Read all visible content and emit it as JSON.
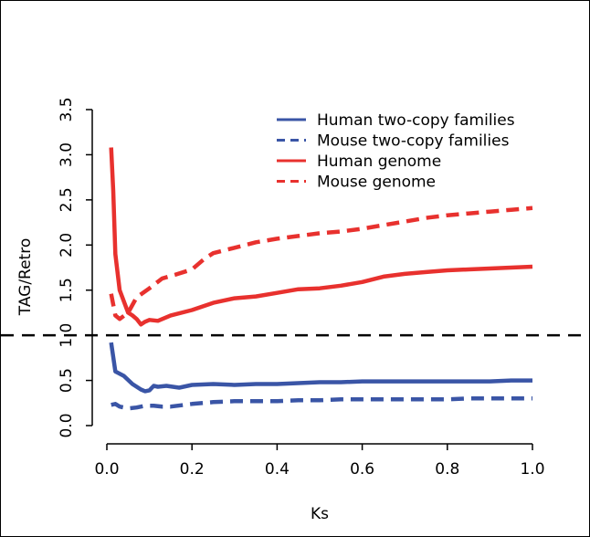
{
  "chart_data": {
    "type": "line",
    "title": "",
    "xlabel": "Ks",
    "ylabel": "TAG/Retro",
    "xlim": [
      0.0,
      1.0
    ],
    "ylim": [
      0.0,
      3.5
    ],
    "x_ticks": [
      "0.0",
      "0.2",
      "0.4",
      "0.6",
      "0.8",
      "1.0"
    ],
    "y_ticks": [
      "0.0",
      "0.5",
      "1.0",
      "1.5",
      "2.0",
      "2.5",
      "3.0",
      "3.5"
    ],
    "grid": false,
    "legend_position": "top-right",
    "reference_line": {
      "y": 1.0,
      "style": "dashed",
      "color": "#000000"
    },
    "series": [
      {
        "name": "Human two-copy families",
        "color": "#3a55a6",
        "dash": "solid",
        "x": [
          0.01,
          0.02,
          0.04,
          0.06,
          0.08,
          0.09,
          0.1,
          0.11,
          0.12,
          0.14,
          0.17,
          0.2,
          0.25,
          0.3,
          0.35,
          0.4,
          0.45,
          0.5,
          0.55,
          0.6,
          0.65,
          0.7,
          0.75,
          0.8,
          0.85,
          0.9,
          0.95,
          1.0
        ],
        "y": [
          0.92,
          0.6,
          0.55,
          0.46,
          0.4,
          0.38,
          0.39,
          0.44,
          0.43,
          0.44,
          0.42,
          0.45,
          0.46,
          0.45,
          0.46,
          0.46,
          0.47,
          0.48,
          0.48,
          0.49,
          0.49,
          0.49,
          0.49,
          0.49,
          0.49,
          0.49,
          0.5,
          0.5
        ]
      },
      {
        "name": "Mouse two-copy families",
        "color": "#3a55a6",
        "dash": "dashed",
        "x": [
          0.01,
          0.02,
          0.03,
          0.05,
          0.07,
          0.09,
          0.11,
          0.13,
          0.15,
          0.2,
          0.25,
          0.3,
          0.35,
          0.4,
          0.45,
          0.5,
          0.55,
          0.6,
          0.65,
          0.7,
          0.75,
          0.8,
          0.85,
          0.9,
          0.95,
          1.0
        ],
        "y": [
          0.23,
          0.24,
          0.21,
          0.19,
          0.2,
          0.22,
          0.22,
          0.21,
          0.21,
          0.24,
          0.26,
          0.27,
          0.27,
          0.27,
          0.28,
          0.28,
          0.29,
          0.29,
          0.29,
          0.29,
          0.29,
          0.29,
          0.3,
          0.3,
          0.3,
          0.3
        ]
      },
      {
        "name": "Human genome",
        "color": "#e8312e",
        "dash": "solid",
        "x": [
          0.01,
          0.015,
          0.02,
          0.03,
          0.05,
          0.06,
          0.07,
          0.08,
          0.09,
          0.1,
          0.12,
          0.15,
          0.2,
          0.25,
          0.3,
          0.35,
          0.4,
          0.45,
          0.5,
          0.55,
          0.6,
          0.65,
          0.7,
          0.75,
          0.8,
          0.85,
          0.9,
          0.95,
          1.0
        ],
        "y": [
          3.08,
          2.6,
          1.9,
          1.5,
          1.25,
          1.22,
          1.18,
          1.12,
          1.15,
          1.17,
          1.16,
          1.22,
          1.28,
          1.36,
          1.41,
          1.43,
          1.47,
          1.51,
          1.52,
          1.55,
          1.59,
          1.65,
          1.68,
          1.7,
          1.72,
          1.73,
          1.74,
          1.75,
          1.76
        ]
      },
      {
        "name": "Mouse genome",
        "color": "#e8312e",
        "dash": "dashed",
        "x": [
          0.01,
          0.02,
          0.03,
          0.05,
          0.07,
          0.1,
          0.13,
          0.16,
          0.2,
          0.23,
          0.25,
          0.3,
          0.35,
          0.4,
          0.45,
          0.5,
          0.55,
          0.6,
          0.65,
          0.7,
          0.75,
          0.8,
          0.85,
          0.9,
          0.95,
          1.0
        ],
        "y": [
          1.46,
          1.22,
          1.18,
          1.25,
          1.42,
          1.52,
          1.63,
          1.67,
          1.73,
          1.85,
          1.91,
          1.97,
          2.03,
          2.07,
          2.1,
          2.13,
          2.15,
          2.18,
          2.22,
          2.26,
          2.3,
          2.33,
          2.35,
          2.37,
          2.39,
          2.41
        ]
      }
    ]
  }
}
